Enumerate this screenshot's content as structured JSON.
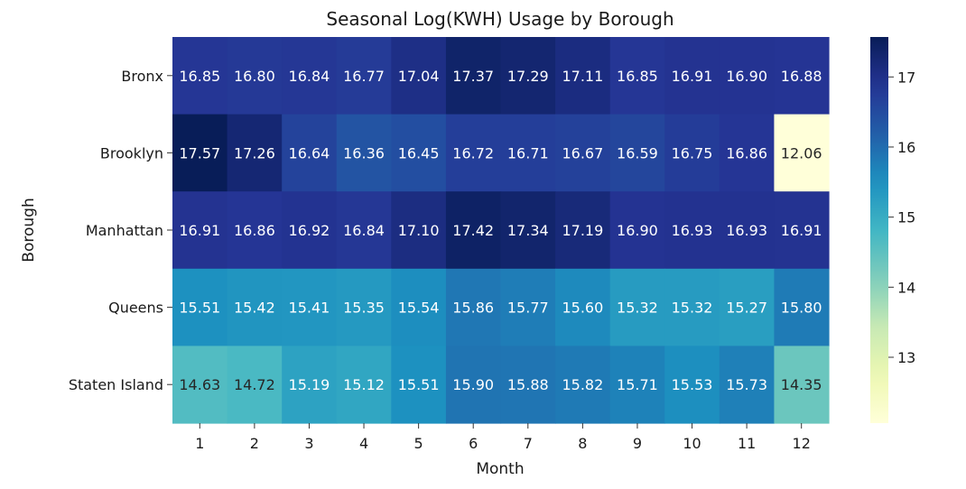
{
  "chart_data": {
    "type": "heatmap",
    "title": "Seasonal Log(KWH) Usage by Borough",
    "xlabel": "Month",
    "ylabel": "Borough",
    "x": [
      "1",
      "2",
      "3",
      "4",
      "5",
      "6",
      "7",
      "8",
      "9",
      "10",
      "11",
      "12"
    ],
    "y": [
      "Bronx",
      "Brooklyn",
      "Manhattan",
      "Queens",
      "Staten Island"
    ],
    "values": [
      [
        16.85,
        16.8,
        16.84,
        16.77,
        17.04,
        17.37,
        17.29,
        17.11,
        16.85,
        16.91,
        16.9,
        16.88
      ],
      [
        17.57,
        17.26,
        16.64,
        16.36,
        16.45,
        16.72,
        16.71,
        16.67,
        16.59,
        16.75,
        16.86,
        12.06
      ],
      [
        16.91,
        16.86,
        16.92,
        16.84,
        17.1,
        17.42,
        17.34,
        17.19,
        16.9,
        16.93,
        16.93,
        16.91
      ],
      [
        15.51,
        15.42,
        15.41,
        15.35,
        15.54,
        15.86,
        15.77,
        15.6,
        15.32,
        15.32,
        15.27,
        15.8
      ],
      [
        14.63,
        14.72,
        15.19,
        15.12,
        15.51,
        15.9,
        15.88,
        15.82,
        15.71,
        15.53,
        15.73,
        14.35
      ]
    ],
    "cell_label_format": "2 decimals",
    "colormap": "YlGnBu",
    "color_range": [
      12.06,
      17.57
    ],
    "colorbar_ticks": [
      13,
      14,
      15,
      16,
      17
    ],
    "colorbar_position": "right",
    "grid": false
  }
}
